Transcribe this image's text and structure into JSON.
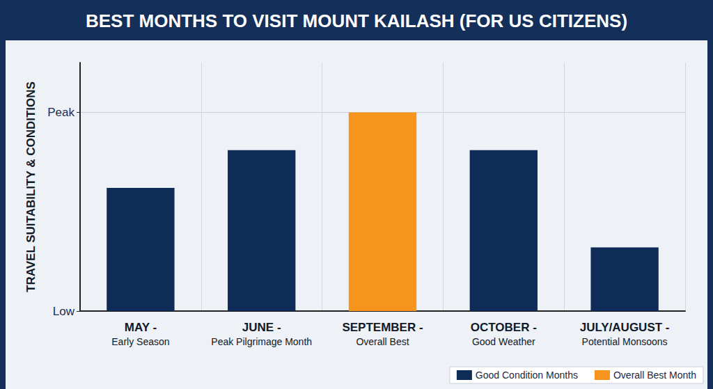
{
  "chart_data": {
    "type": "bar",
    "title": "BEST MONTHS TO VISIT MOUNT KAILASH (FOR US CITIZENS)",
    "ylabel": "TRAVEL SUITABILITY & CONDITIONS",
    "categories": [
      "MAY -\nEarly Season",
      "JUNE -\nPeak Pilgrimage Month",
      "SEPTEMBER -\nOverall Best",
      "OCTOBER -\nGood Weather",
      "JULY/AUGUST -\nPotential Monsoons"
    ],
    "series": [
      {
        "name": "Good Condition Months",
        "color": "#0f2b57",
        "values": [
          62,
          81,
          null,
          81,
          32
        ]
      },
      {
        "name": "Overall Best Month",
        "color": "#f7941d",
        "values": [
          null,
          null,
          100,
          null,
          null
        ]
      }
    ],
    "ylim": [
      0,
      125
    ],
    "yticks": [
      {
        "value": 0,
        "label": "Low"
      },
      {
        "value": 100,
        "label": "Peak"
      }
    ],
    "grid": true,
    "legend": "lower right"
  }
}
